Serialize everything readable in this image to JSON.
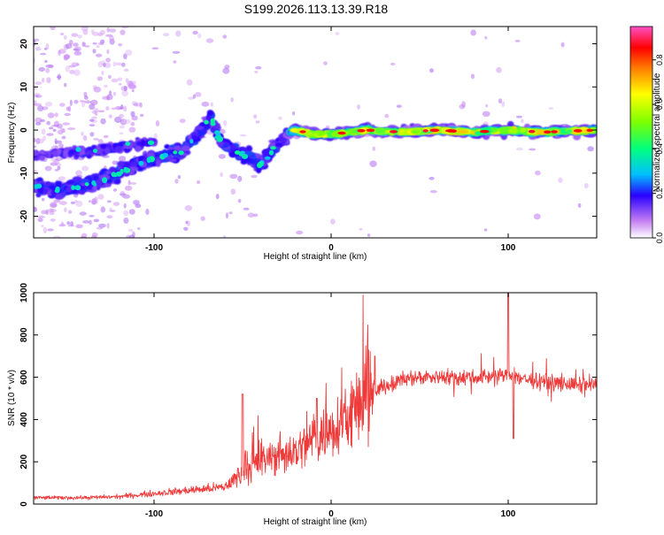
{
  "figure": {
    "title": "S199.2026.113.13.39.R18"
  },
  "chart_data": [
    {
      "type": "heatmap",
      "title": "S199.2026.113.13.39.R18",
      "xlabel": "Height of straight line (km)",
      "ylabel": "Frequency (Hz)",
      "xlim": [
        -168,
        150
      ],
      "ylim": [
        -25,
        24
      ],
      "x_ticks": [
        -100,
        0,
        100
      ],
      "y_ticks": [
        -20,
        -10,
        0,
        10,
        20
      ],
      "colorbar": {
        "label": "Normalized spectral amplitude",
        "range": [
          0,
          0.95
        ],
        "ticks": [
          0.0,
          0.2,
          0.4,
          0.6,
          0.8
        ]
      },
      "ridge": [
        [
          -168,
          -13
        ],
        [
          -155,
          -14
        ],
        [
          -140,
          -13
        ],
        [
          -125,
          -11
        ],
        [
          -110,
          -8
        ],
        [
          -95,
          -6
        ],
        [
          -85,
          -5
        ],
        [
          -75,
          -1
        ],
        [
          -68,
          3
        ],
        [
          -62,
          -3
        ],
        [
          -55,
          -5
        ],
        [
          -48,
          -6
        ],
        [
          -40,
          -8
        ],
        [
          -32,
          -4
        ],
        [
          -25,
          -1
        ],
        [
          -20,
          0
        ],
        [
          -10,
          -1
        ],
        [
          0,
          -1
        ],
        [
          20,
          0
        ],
        [
          40,
          -0.5
        ],
        [
          60,
          0
        ],
        [
          80,
          -0.5
        ],
        [
          100,
          0
        ],
        [
          120,
          -0.5
        ],
        [
          150,
          0
        ]
      ],
      "upper_branch": [
        [
          -165,
          -6
        ],
        [
          -150,
          -5
        ],
        [
          -135,
          -5
        ],
        [
          -120,
          -4
        ],
        [
          -105,
          -3
        ]
      ]
    },
    {
      "type": "line",
      "xlabel": "Height of straight line (km)",
      "ylabel": "SNR (10 * v/v)",
      "xlim": [
        -168,
        150
      ],
      "ylim": [
        0,
        1000
      ],
      "x_ticks": [
        -100,
        0,
        100
      ],
      "y_ticks": [
        0,
        200,
        400,
        600,
        800,
        1000
      ],
      "color": "#ef3a3a",
      "trend": [
        [
          -168,
          30
        ],
        [
          -140,
          30
        ],
        [
          -120,
          35
        ],
        [
          -100,
          50
        ],
        [
          -80,
          65
        ],
        [
          -60,
          80
        ],
        [
          -50,
          150
        ],
        [
          -40,
          200
        ],
        [
          -30,
          230
        ],
        [
          -20,
          250
        ],
        [
          -10,
          300
        ],
        [
          0,
          360
        ],
        [
          10,
          420
        ],
        [
          20,
          500
        ],
        [
          30,
          560
        ],
        [
          40,
          590
        ],
        [
          50,
          600
        ],
        [
          60,
          605
        ],
        [
          70,
          600
        ],
        [
          80,
          600
        ],
        [
          90,
          605
        ],
        [
          100,
          610
        ],
        [
          110,
          590
        ],
        [
          120,
          580
        ],
        [
          130,
          570
        ],
        [
          140,
          560
        ],
        [
          150,
          560
        ]
      ],
      "spikes": [
        [
          100,
          1000
        ],
        [
          103,
          310
        ],
        [
          -50,
          520
        ],
        [
          -8,
          500
        ]
      ]
    }
  ]
}
